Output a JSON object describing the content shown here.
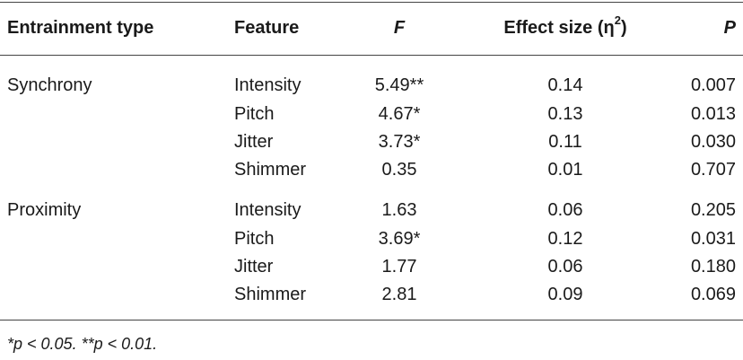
{
  "headers": {
    "type": "Entrainment type",
    "feature": "Feature",
    "f": "F",
    "effect": "Effect size (η",
    "effect_sup": "2",
    "effect_close": ")",
    "p": "P"
  },
  "groups": [
    {
      "type": "Synchrony",
      "rows": [
        {
          "feature": "Intensity",
          "f": "5.49**",
          "effect": "0.14",
          "p": "0.007"
        },
        {
          "feature": "Pitch",
          "f": "4.67*",
          "effect": "0.13",
          "p": "0.013"
        },
        {
          "feature": "Jitter",
          "f": "3.73*",
          "effect": "0.11",
          "p": "0.030"
        },
        {
          "feature": "Shimmer",
          "f": "0.35",
          "effect": "0.01",
          "p": "0.707"
        }
      ]
    },
    {
      "type": "Proximity",
      "rows": [
        {
          "feature": "Intensity",
          "f": "1.63",
          "effect": "0.06",
          "p": "0.205"
        },
        {
          "feature": "Pitch",
          "f": "3.69*",
          "effect": "0.12",
          "p": "0.031"
        },
        {
          "feature": "Jitter",
          "f": "1.77",
          "effect": "0.06",
          "p": "0.180"
        },
        {
          "feature": "Shimmer",
          "f": "2.81",
          "effect": "0.09",
          "p": "0.069"
        }
      ]
    }
  ],
  "footnote": "*p < 0.05. **p < 0.01."
}
